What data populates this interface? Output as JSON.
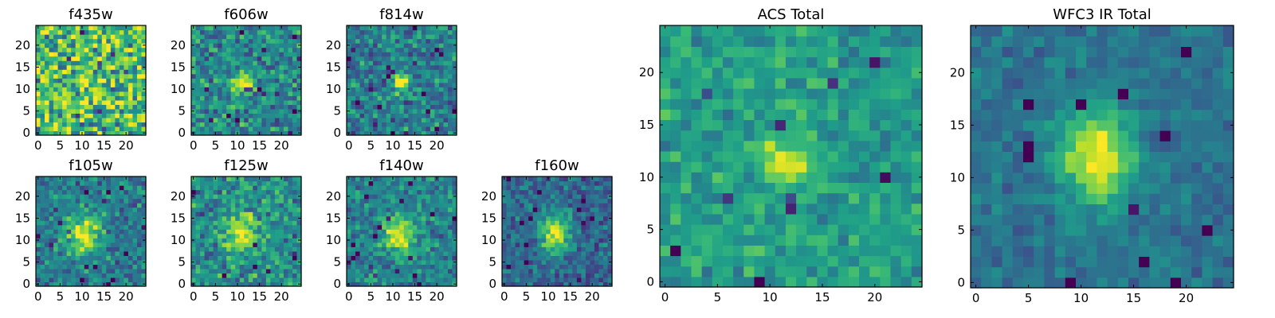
{
  "chart_data": [
    {
      "type": "heatmap",
      "title": "f435w",
      "xlabel": "",
      "ylabel": "",
      "grid": "25x25",
      "colormap": "viridis",
      "xlim": [
        0,
        25
      ],
      "ylim": [
        0,
        25
      ],
      "xticks": [
        0,
        5,
        10,
        15,
        20
      ],
      "yticks": [
        0,
        5,
        10,
        15,
        20
      ],
      "source": {
        "x": 12,
        "y": 11,
        "sx": 3,
        "sy": 3,
        "amp": 0.05
      },
      "noise": 0.32,
      "base": 0.7,
      "seed": 11
    },
    {
      "type": "heatmap",
      "title": "f606w",
      "xlabel": "",
      "ylabel": "",
      "grid": "25x25",
      "colormap": "viridis",
      "xlim": [
        0,
        25
      ],
      "ylim": [
        0,
        25
      ],
      "xticks": [
        0,
        5,
        10,
        15,
        20
      ],
      "yticks": [
        0,
        5,
        10,
        15,
        20
      ],
      "source": {
        "x": 11.5,
        "y": 12,
        "sx": 1.6,
        "sy": 1.6,
        "amp": 0.5
      },
      "noise": 0.2,
      "base": 0.48,
      "seed": 23
    },
    {
      "type": "heatmap",
      "title": "f814w",
      "xlabel": "",
      "ylabel": "",
      "grid": "25x25",
      "colormap": "viridis",
      "xlim": [
        0,
        25
      ],
      "ylim": [
        0,
        25
      ],
      "xticks": [
        0,
        5,
        10,
        15,
        20
      ],
      "yticks": [
        0,
        5,
        10,
        15,
        20
      ],
      "source": {
        "x": 12.5,
        "y": 12,
        "sx": 1.2,
        "sy": 1.7,
        "amp": 0.55
      },
      "noise": 0.2,
      "base": 0.42,
      "seed": 37
    },
    {
      "type": "heatmap",
      "title": "f105w",
      "xlabel": "",
      "ylabel": "",
      "grid": "25x25",
      "colormap": "viridis",
      "xlim": [
        0,
        25
      ],
      "ylim": [
        0,
        25
      ],
      "xticks": [
        0,
        5,
        10,
        15,
        20
      ],
      "yticks": [
        0,
        5,
        10,
        15,
        20
      ],
      "source": {
        "x": 11,
        "y": 12,
        "sx": 2.6,
        "sy": 3.2,
        "amp": 0.55
      },
      "noise": 0.17,
      "base": 0.42,
      "seed": 41
    },
    {
      "type": "heatmap",
      "title": "f125w",
      "xlabel": "",
      "ylabel": "",
      "grid": "25x25",
      "colormap": "viridis",
      "xlim": [
        0,
        25
      ],
      "ylim": [
        0,
        25
      ],
      "xticks": [
        0,
        5,
        10,
        15,
        20
      ],
      "yticks": [
        0,
        5,
        10,
        15,
        20
      ],
      "source": {
        "x": 11.5,
        "y": 12,
        "sx": 2.6,
        "sy": 3,
        "amp": 0.45
      },
      "noise": 0.2,
      "base": 0.5,
      "seed": 53
    },
    {
      "type": "heatmap",
      "title": "f140w",
      "xlabel": "",
      "ylabel": "",
      "grid": "25x25",
      "colormap": "viridis",
      "xlim": [
        0,
        25
      ],
      "ylim": [
        0,
        25
      ],
      "xticks": [
        0,
        5,
        10,
        15,
        20
      ],
      "yticks": [
        0,
        5,
        10,
        15,
        20
      ],
      "source": {
        "x": 12,
        "y": 12,
        "sx": 2.4,
        "sy": 3,
        "amp": 0.55
      },
      "noise": 0.16,
      "base": 0.45,
      "seed": 67
    },
    {
      "type": "heatmap",
      "title": "f160w",
      "xlabel": "",
      "ylabel": "",
      "grid": "25x25",
      "colormap": "viridis",
      "xlim": [
        0,
        25
      ],
      "ylim": [
        0,
        25
      ],
      "xticks": [
        0,
        5,
        10,
        15,
        20
      ],
      "yticks": [
        0,
        5,
        10,
        15,
        20
      ],
      "source": {
        "x": 12,
        "y": 12,
        "sx": 2.3,
        "sy": 3,
        "amp": 0.6
      },
      "noise": 0.15,
      "base": 0.34,
      "seed": 79
    },
    {
      "type": "heatmap",
      "title": "ACS Total",
      "xlabel": "",
      "ylabel": "",
      "grid": "25x25",
      "colormap": "viridis",
      "xlim": [
        0,
        25
      ],
      "ylim": [
        0,
        25
      ],
      "xticks": [
        0,
        5,
        10,
        15,
        20
      ],
      "yticks": [
        0,
        5,
        10,
        15,
        20
      ],
      "source": {
        "x": 12,
        "y": 12,
        "sx": 1.4,
        "sy": 1.6,
        "amp": 0.45
      },
      "noise": 0.13,
      "base": 0.55,
      "seed": 97
    },
    {
      "type": "heatmap",
      "title": "WFC3 IR Total",
      "xlabel": "",
      "ylabel": "",
      "grid": "25x25",
      "colormap": "viridis",
      "xlim": [
        0,
        25
      ],
      "ylim": [
        0,
        25
      ],
      "xticks": [
        0,
        5,
        10,
        15,
        20
      ],
      "yticks": [
        0,
        5,
        10,
        15,
        20
      ],
      "source": {
        "x": 12,
        "y": 12.5,
        "sx": 2.4,
        "sy": 3.2,
        "amp": 0.62
      },
      "noise": 0.09,
      "base": 0.38,
      "seed": 131
    }
  ]
}
